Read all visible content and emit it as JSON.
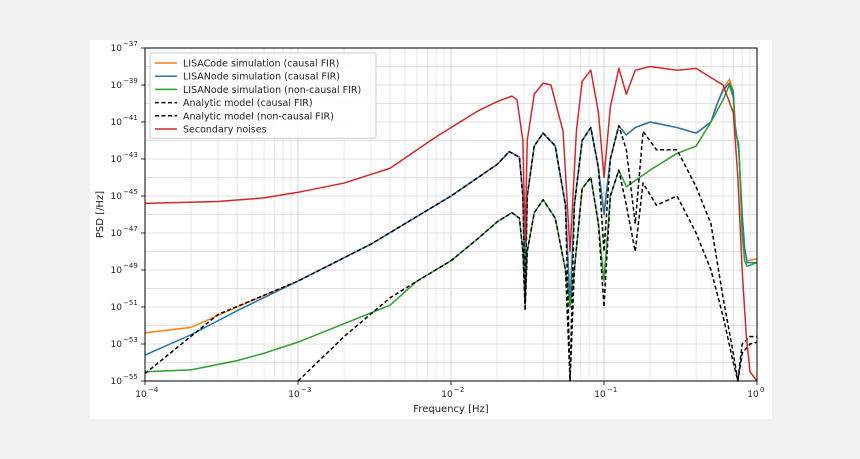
{
  "chart_data": {
    "type": "line",
    "xlabel": "Frequency [Hz]",
    "ylabel": "PSD [/Hz]",
    "x_scale": "log",
    "y_scale": "log",
    "xlim": [
      0.0001,
      1
    ],
    "ylim": [
      1e-55,
      1e-37
    ],
    "grid": true,
    "legend_position": "top-left",
    "x_ticks": [
      {
        "value": 0.0001,
        "base": "10",
        "exp": "−4"
      },
      {
        "value": 0.001,
        "base": "10",
        "exp": "−3"
      },
      {
        "value": 0.01,
        "base": "10",
        "exp": "−2"
      },
      {
        "value": 0.1,
        "base": "10",
        "exp": "−1"
      },
      {
        "value": 1,
        "base": "10",
        "exp": "0"
      }
    ],
    "y_ticks": [
      {
        "value": 1e-55,
        "base": "10",
        "exp": "−55"
      },
      {
        "value": 1e-53,
        "base": "10",
        "exp": "−53"
      },
      {
        "value": 1e-51,
        "base": "10",
        "exp": "−51"
      },
      {
        "value": 1e-49,
        "base": "10",
        "exp": "−49"
      },
      {
        "value": 1e-47,
        "base": "10",
        "exp": "−47"
      },
      {
        "value": 1e-45,
        "base": "10",
        "exp": "−45"
      },
      {
        "value": 1e-43,
        "base": "10",
        "exp": "−43"
      },
      {
        "value": 1e-41,
        "base": "10",
        "exp": "−41"
      },
      {
        "value": 1e-39,
        "base": "10",
        "exp": "−39"
      },
      {
        "value": 1e-37,
        "base": "10",
        "exp": "−37"
      }
    ],
    "series": [
      {
        "name": "LISACode simulation (causal FIR)",
        "color": "#ff7f0e",
        "dash": "solid",
        "points": [
          [
            0.0001,
            -52.4
          ],
          [
            0.0002,
            -52.1
          ],
          [
            0.0004,
            -51.0
          ],
          [
            0.001,
            -49.6
          ],
          [
            0.003,
            -47.6
          ],
          [
            0.01,
            -45.0
          ],
          [
            0.02,
            -43.3
          ],
          [
            0.024,
            -42.6
          ],
          [
            0.028,
            -42.9
          ],
          [
            0.0295,
            -45
          ],
          [
            0.0305,
            -50.1
          ],
          [
            0.0315,
            -45
          ],
          [
            0.035,
            -42.3
          ],
          [
            0.04,
            -41.6
          ],
          [
            0.048,
            -42.3
          ],
          [
            0.056,
            -45.5
          ],
          [
            0.06,
            -51
          ],
          [
            0.064,
            -45.5
          ],
          [
            0.072,
            -42
          ],
          [
            0.082,
            -41.3
          ],
          [
            0.092,
            -43.5
          ],
          [
            0.1,
            -46
          ],
          [
            0.11,
            -43
          ],
          [
            0.125,
            -41.2
          ],
          [
            0.14,
            -41.7
          ],
          [
            0.16,
            -41.3
          ],
          [
            0.2,
            -41.0
          ],
          [
            0.3,
            -41.3
          ],
          [
            0.4,
            -41.6
          ],
          [
            0.5,
            -41.0
          ],
          [
            0.55,
            -40.0
          ],
          [
            0.6,
            -39.2
          ],
          [
            0.66,
            -38.7
          ],
          [
            0.7,
            -39.3
          ],
          [
            0.72,
            -41.2
          ],
          [
            0.76,
            -42.5
          ],
          [
            0.8,
            -46.0
          ],
          [
            0.83,
            -47.8
          ],
          [
            0.86,
            -48.5
          ],
          [
            1.0,
            -48.4
          ]
        ]
      },
      {
        "name": "LISANode simulation (causal FIR)",
        "color": "#1f77b4",
        "dash": "solid",
        "points": [
          [
            0.0001,
            -53.6
          ],
          [
            0.0002,
            -52.5
          ],
          [
            0.0004,
            -51.2
          ],
          [
            0.001,
            -49.6
          ],
          [
            0.003,
            -47.6
          ],
          [
            0.01,
            -45.0
          ],
          [
            0.02,
            -43.3
          ],
          [
            0.024,
            -42.6
          ],
          [
            0.028,
            -42.9
          ],
          [
            0.0295,
            -45
          ],
          [
            0.0305,
            -50.1
          ],
          [
            0.0315,
            -45
          ],
          [
            0.035,
            -42.3
          ],
          [
            0.04,
            -41.6
          ],
          [
            0.048,
            -42.3
          ],
          [
            0.056,
            -45.5
          ],
          [
            0.06,
            -51
          ],
          [
            0.064,
            -45.5
          ],
          [
            0.072,
            -42
          ],
          [
            0.082,
            -41.3
          ],
          [
            0.092,
            -43.5
          ],
          [
            0.1,
            -46
          ],
          [
            0.11,
            -43
          ],
          [
            0.125,
            -41.2
          ],
          [
            0.14,
            -41.7
          ],
          [
            0.16,
            -41.3
          ],
          [
            0.2,
            -41.0
          ],
          [
            0.3,
            -41.3
          ],
          [
            0.4,
            -41.6
          ],
          [
            0.5,
            -41.0
          ],
          [
            0.55,
            -40.0
          ],
          [
            0.6,
            -39.3
          ],
          [
            0.66,
            -38.9
          ],
          [
            0.7,
            -39.4
          ],
          [
            0.72,
            -41.2
          ],
          [
            0.76,
            -42.5
          ],
          [
            0.8,
            -46.0
          ],
          [
            0.83,
            -47.8
          ],
          [
            0.86,
            -48.6
          ],
          [
            1.0,
            -48.6
          ]
        ]
      },
      {
        "name": "LISANode simulation (non-causal FIR)",
        "color": "#2ca02c",
        "dash": "solid",
        "points": [
          [
            0.0001,
            -54.5
          ],
          [
            0.0002,
            -54.4
          ],
          [
            0.0004,
            -53.9
          ],
          [
            0.0006,
            -53.5
          ],
          [
            0.001,
            -52.9
          ],
          [
            0.002,
            -51.9
          ],
          [
            0.004,
            -50.9
          ],
          [
            0.006,
            -49.6
          ],
          [
            0.01,
            -48.5
          ],
          [
            0.015,
            -47.3
          ],
          [
            0.02,
            -46.4
          ],
          [
            0.025,
            -45.9
          ],
          [
            0.028,
            -46.2
          ],
          [
            0.0295,
            -48
          ],
          [
            0.0305,
            -50.9
          ],
          [
            0.0315,
            -48
          ],
          [
            0.035,
            -45.9
          ],
          [
            0.04,
            -45.2
          ],
          [
            0.048,
            -46.2
          ],
          [
            0.056,
            -49
          ],
          [
            0.06,
            -51
          ],
          [
            0.064,
            -49
          ],
          [
            0.072,
            -44.6
          ],
          [
            0.082,
            -44
          ],
          [
            0.092,
            -46.5
          ],
          [
            0.1,
            -49.6
          ],
          [
            0.11,
            -45
          ],
          [
            0.125,
            -43.6
          ],
          [
            0.14,
            -44.5
          ],
          [
            0.2,
            -43.6
          ],
          [
            0.3,
            -42.7
          ],
          [
            0.4,
            -42.3
          ],
          [
            0.5,
            -41
          ],
          [
            0.6,
            -39.8
          ],
          [
            0.66,
            -39.0
          ],
          [
            0.7,
            -39.7
          ],
          [
            0.72,
            -41.5
          ],
          [
            0.76,
            -42.2
          ],
          [
            0.8,
            -47
          ],
          [
            0.83,
            -48.5
          ],
          [
            0.86,
            -48.8
          ],
          [
            1.0,
            -48.6
          ]
        ]
      },
      {
        "name": "Analytic model (causal FIR)",
        "color": "#000000",
        "dash": "dashed",
        "points": [
          [
            0.0001,
            -54.6
          ],
          [
            0.0003,
            -51.4
          ],
          [
            0.001,
            -49.6
          ],
          [
            0.003,
            -47.6
          ],
          [
            0.01,
            -45.0
          ],
          [
            0.02,
            -43.3
          ],
          [
            0.024,
            -42.6
          ],
          [
            0.028,
            -42.9
          ],
          [
            0.0295,
            -45
          ],
          [
            0.0305,
            -50.8
          ],
          [
            0.0315,
            -45
          ],
          [
            0.035,
            -42.3
          ],
          [
            0.04,
            -41.6
          ],
          [
            0.048,
            -42.3
          ],
          [
            0.056,
            -45.5
          ],
          [
            0.06,
            -55
          ],
          [
            0.064,
            -45.5
          ],
          [
            0.072,
            -42
          ],
          [
            0.082,
            -41.3
          ],
          [
            0.092,
            -43.5
          ],
          [
            0.1,
            -48
          ],
          [
            0.11,
            -43
          ],
          [
            0.125,
            -41.2
          ],
          [
            0.14,
            -42.5
          ],
          [
            0.16,
            -46.5
          ],
          [
            0.18,
            -41.5
          ],
          [
            0.22,
            -42.5
          ],
          [
            0.3,
            -42.5
          ],
          [
            0.4,
            -44.5
          ],
          [
            0.5,
            -46.5
          ],
          [
            0.6,
            -50.5
          ],
          [
            0.7,
            -53.5
          ],
          [
            0.75,
            -55.0
          ],
          [
            0.8,
            -53.0
          ],
          [
            0.9,
            -52.6
          ],
          [
            1.0,
            -52.6
          ]
        ]
      },
      {
        "name": "Analytic model (non-causal FIR)",
        "color": "#000000",
        "dash": "dashed",
        "points": [
          [
            0.001,
            -55.0
          ],
          [
            0.002,
            -52.6
          ],
          [
            0.004,
            -50.5
          ],
          [
            0.006,
            -49.6
          ],
          [
            0.01,
            -48.5
          ],
          [
            0.015,
            -47.3
          ],
          [
            0.02,
            -46.4
          ],
          [
            0.025,
            -45.9
          ],
          [
            0.028,
            -46.2
          ],
          [
            0.0295,
            -48
          ],
          [
            0.0305,
            -51.2
          ],
          [
            0.0315,
            -48
          ],
          [
            0.035,
            -45.9
          ],
          [
            0.04,
            -45.2
          ],
          [
            0.048,
            -46.2
          ],
          [
            0.056,
            -49
          ],
          [
            0.06,
            -55
          ],
          [
            0.064,
            -49
          ],
          [
            0.072,
            -44.6
          ],
          [
            0.082,
            -44
          ],
          [
            0.092,
            -46.5
          ],
          [
            0.1,
            -51
          ],
          [
            0.11,
            -45
          ],
          [
            0.125,
            -43.6
          ],
          [
            0.14,
            -45.5
          ],
          [
            0.16,
            -48
          ],
          [
            0.18,
            -44.3
          ],
          [
            0.22,
            -45.5
          ],
          [
            0.3,
            -45.0
          ],
          [
            0.4,
            -47.0
          ],
          [
            0.5,
            -49.0
          ],
          [
            0.6,
            -51.5
          ],
          [
            0.7,
            -54.0
          ],
          [
            0.75,
            -55.0
          ],
          [
            0.8,
            -53.5
          ],
          [
            0.9,
            -53.0
          ],
          [
            1.0,
            -52.9
          ]
        ]
      },
      {
        "name": "Secondary noises",
        "color": "#d62728",
        "dash": "solid",
        "points": [
          [
            0.0001,
            -45.4
          ],
          [
            0.0003,
            -45.3
          ],
          [
            0.0006,
            -45.1
          ],
          [
            0.001,
            -44.8
          ],
          [
            0.002,
            -44.3
          ],
          [
            0.004,
            -43.5
          ],
          [
            0.008,
            -41.8
          ],
          [
            0.015,
            -40.4
          ],
          [
            0.02,
            -39.9
          ],
          [
            0.025,
            -39.6
          ],
          [
            0.027,
            -39.8
          ],
          [
            0.0295,
            -42
          ],
          [
            0.0305,
            -47.5
          ],
          [
            0.0315,
            -42
          ],
          [
            0.035,
            -39.5
          ],
          [
            0.04,
            -38.9
          ],
          [
            0.045,
            -39.0
          ],
          [
            0.054,
            -41.5
          ],
          [
            0.06,
            -48
          ],
          [
            0.066,
            -41.5
          ],
          [
            0.072,
            -38.8
          ],
          [
            0.082,
            -38.2
          ],
          [
            0.092,
            -40.5
          ],
          [
            0.1,
            -44
          ],
          [
            0.11,
            -40.2
          ],
          [
            0.125,
            -38.1
          ],
          [
            0.14,
            -39.5
          ],
          [
            0.16,
            -38.2
          ],
          [
            0.2,
            -38.0
          ],
          [
            0.3,
            -38.2
          ],
          [
            0.4,
            -38.1
          ],
          [
            0.5,
            -38.6
          ],
          [
            0.6,
            -39.0
          ],
          [
            0.7,
            -40.5
          ],
          [
            0.75,
            -44
          ],
          [
            0.8,
            -49
          ],
          [
            0.85,
            -52.5
          ],
          [
            0.9,
            -54.5
          ],
          [
            1.0,
            -55.0
          ]
        ]
      }
    ]
  }
}
